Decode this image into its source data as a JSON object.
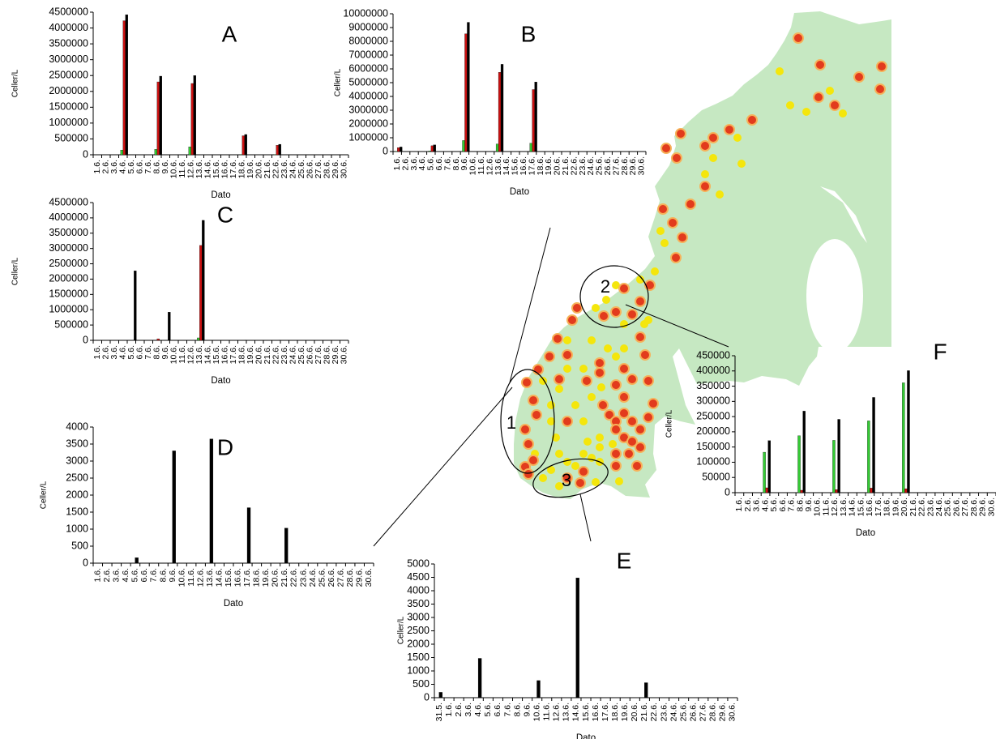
{
  "figure": {
    "map_labels": [
      "1",
      "2",
      "3"
    ]
  },
  "chart_data": [
    {
      "id": "A",
      "panel_label": "A",
      "type": "bar",
      "ylabel": "Celler/L",
      "xlabel": "Dato",
      "ylim": [
        0,
        4500000
      ],
      "yticks": [
        "0",
        "500000",
        "1000000",
        "1500000",
        "2000000",
        "2500000",
        "3000000",
        "3500000",
        "4000000",
        "4500000"
      ],
      "categories": [
        "1.6.",
        "2.6.",
        "3.6.",
        "4.6.",
        "5.6.",
        "6.6.",
        "7.6.",
        "8.6.",
        "9.6.",
        "10.6.",
        "11.6.",
        "12.6.",
        "13.6.",
        "14.6.",
        "15.6.",
        "16.6.",
        "17.6.",
        "18.6.",
        "19.6.",
        "20.6.",
        "21.6.",
        "22.6.",
        "23.6.",
        "24.6.",
        "25.6.",
        "26.6.",
        "27.6.",
        "28.6.",
        "29.6.",
        "30.6."
      ],
      "series": [
        {
          "color": "#33cc33",
          "values": [
            0,
            0,
            0,
            150000,
            0,
            0,
            0,
            170000,
            0,
            0,
            0,
            250000,
            0,
            0,
            0,
            0,
            0,
            10000,
            0,
            0,
            0,
            10000,
            0,
            0,
            0,
            0,
            0,
            0,
            0,
            0
          ]
        },
        {
          "color": "#cc1111",
          "values": [
            0,
            0,
            0,
            4230000,
            0,
            0,
            0,
            2300000,
            0,
            0,
            0,
            2250000,
            0,
            0,
            0,
            0,
            0,
            600000,
            0,
            0,
            0,
            300000,
            0,
            0,
            0,
            0,
            0,
            0,
            0,
            0
          ]
        },
        {
          "color": "#000000",
          "values": [
            0,
            0,
            0,
            4420000,
            0,
            0,
            0,
            2480000,
            0,
            0,
            0,
            2500000,
            0,
            0,
            0,
            0,
            0,
            640000,
            0,
            0,
            0,
            330000,
            0,
            0,
            0,
            0,
            0,
            0,
            0,
            0
          ]
        }
      ]
    },
    {
      "id": "B",
      "panel_label": "B",
      "type": "bar",
      "ylabel": "Celler/L",
      "xlabel": "Dato",
      "ylim": [
        0,
        10000000
      ],
      "yticks": [
        "0",
        "1000000",
        "2000000",
        "3000000",
        "4000000",
        "5000000",
        "6000000",
        "7000000",
        "8000000",
        "9000000",
        "10000000"
      ],
      "categories": [
        "1.6.",
        "2.6.",
        "3.6.",
        "4.6.",
        "5.6.",
        "6.6.",
        "7.6.",
        "8.6.",
        "9.6.",
        "10.6.",
        "11.6.",
        "12.6.",
        "13.6.",
        "14.6.",
        "15.6.",
        "16.6.",
        "17.6.",
        "18.6.",
        "19.6.",
        "20.6.",
        "21.6.",
        "22.6.",
        "23.6.",
        "24.6.",
        "25.6.",
        "26.6.",
        "27.6.",
        "28.6.",
        "29.6.",
        "30.6."
      ],
      "series": [
        {
          "color": "#33cc33",
          "values": [
            20000,
            0,
            0,
            0,
            40000,
            0,
            0,
            0,
            800000,
            0,
            0,
            0,
            550000,
            0,
            0,
            0,
            600000,
            0,
            0,
            0,
            0,
            0,
            0,
            0,
            0,
            0,
            0,
            0,
            0,
            0
          ]
        },
        {
          "color": "#cc1111",
          "values": [
            280000,
            0,
            0,
            0,
            420000,
            0,
            0,
            0,
            8550000,
            0,
            0,
            0,
            5750000,
            0,
            0,
            0,
            4500000,
            0,
            0,
            0,
            0,
            0,
            0,
            0,
            0,
            0,
            0,
            0,
            0,
            0
          ]
        },
        {
          "color": "#000000",
          "values": [
            330000,
            0,
            0,
            0,
            480000,
            0,
            0,
            0,
            9380000,
            0,
            0,
            0,
            6330000,
            0,
            0,
            0,
            5050000,
            0,
            0,
            0,
            0,
            0,
            0,
            0,
            0,
            0,
            0,
            0,
            0,
            0
          ]
        }
      ]
    },
    {
      "id": "C",
      "panel_label": "C",
      "type": "bar",
      "ylabel": "Celler/L",
      "xlabel": "Dato",
      "ylim": [
        0,
        4500000
      ],
      "yticks": [
        "0",
        "500000",
        "1000000",
        "1500000",
        "2000000",
        "2500000",
        "3000000",
        "3500000",
        "4000000",
        "4500000"
      ],
      "categories": [
        "1.6.",
        "2.6.",
        "3.6.",
        "4.6.",
        "5.6.",
        "6.6.",
        "7.6.",
        "8.6.",
        "9.6.",
        "10.6.",
        "11.6.",
        "12.6.",
        "13.6.",
        "14.6.",
        "15.6.",
        "16.6.",
        "17.6.",
        "18.6.",
        "19.6.",
        "20.6.",
        "21.6.",
        "22.6.",
        "23.6.",
        "24.6.",
        "25.6.",
        "26.6.",
        "27.6.",
        "28.6.",
        "29.6.",
        "30.6."
      ],
      "series": [
        {
          "color": "#33cc33",
          "values": [
            0,
            0,
            0,
            0,
            0,
            0,
            0,
            0,
            0,
            0,
            0,
            0,
            80000,
            0,
            0,
            0,
            0,
            0,
            0,
            0,
            0,
            0,
            0,
            0,
            0,
            0,
            0,
            0,
            0,
            0
          ]
        },
        {
          "color": "#cc1111",
          "values": [
            0,
            0,
            0,
            0,
            0,
            0,
            0,
            50000,
            0,
            0,
            0,
            0,
            3100000,
            0,
            0,
            0,
            0,
            0,
            0,
            0,
            0,
            0,
            0,
            0,
            0,
            0,
            0,
            0,
            0,
            0
          ]
        },
        {
          "color": "#000000",
          "values": [
            0,
            0,
            0,
            0,
            2270000,
            0,
            0,
            0,
            920000,
            0,
            0,
            0,
            3920000,
            0,
            0,
            0,
            0,
            10000,
            0,
            0,
            0,
            10000,
            0,
            0,
            0,
            0,
            0,
            0,
            0,
            0
          ]
        }
      ]
    },
    {
      "id": "D",
      "panel_label": "D",
      "type": "bar",
      "ylabel": "Celler/L",
      "xlabel": "Dato",
      "ylim": [
        0,
        4000
      ],
      "yticks": [
        "0",
        "500",
        "1000",
        "1500",
        "2000",
        "2500",
        "3000",
        "3500",
        "4000"
      ],
      "categories": [
        "1.6.",
        "2.6.",
        "3.6.",
        "4.6.",
        "5.6.",
        "6.6.",
        "7.6.",
        "8.6.",
        "9.6.",
        "10.6.",
        "11.6.",
        "12.6.",
        "13.6.",
        "14.6.",
        "15.6.",
        "16.6.",
        "17.6.",
        "18.6.",
        "19.6.",
        "20.6.",
        "21.6.",
        "22.6.",
        "23.6.",
        "24.6.",
        "25.6.",
        "26.6.",
        "27.6.",
        "28.6.",
        "29.6.",
        "30.6."
      ],
      "series": [
        {
          "color": "#000000",
          "values": [
            0,
            0,
            0,
            0,
            160,
            0,
            0,
            0,
            3300,
            0,
            0,
            0,
            3650,
            0,
            0,
            0,
            1630,
            0,
            0,
            0,
            1030,
            0,
            0,
            0,
            0,
            0,
            0,
            0,
            0,
            0
          ]
        }
      ]
    },
    {
      "id": "E",
      "panel_label": "E",
      "type": "bar",
      "ylabel": "Celler/L",
      "xlabel": "Dato",
      "ylim": [
        0,
        5000
      ],
      "yticks": [
        "0",
        "500",
        "1000",
        "1500",
        "2000",
        "2500",
        "3000",
        "3500",
        "4000",
        "4500",
        "5000"
      ],
      "categories": [
        "31.5.",
        "1.6.",
        "2.6.",
        "3.6.",
        "4.6.",
        "5.6.",
        "6.6.",
        "7.6.",
        "8.6.",
        "9.6.",
        "10.6.",
        "11.6.",
        "12.6.",
        "13.6.",
        "14.6.",
        "15.6.",
        "16.6.",
        "17.6.",
        "18.6.",
        "19.6.",
        "20.6.",
        "21.6.",
        "22.6.",
        "23.6.",
        "24.6.",
        "25.6.",
        "26.6.",
        "27.6.",
        "28.6.",
        "29.6.",
        "30.6."
      ],
      "series": [
        {
          "color": "#000000",
          "values": [
            200,
            0,
            0,
            0,
            1470,
            0,
            0,
            0,
            0,
            0,
            640,
            0,
            0,
            0,
            4480,
            0,
            0,
            0,
            0,
            0,
            0,
            560,
            0,
            0,
            0,
            0,
            0,
            0,
            0,
            0,
            0
          ]
        }
      ]
    },
    {
      "id": "F",
      "panel_label": "F",
      "type": "bar",
      "ylabel": "Celler/L",
      "xlabel": "Dato",
      "ylim": [
        0,
        450000
      ],
      "yticks": [
        "0",
        "50000",
        "100000",
        "150000",
        "200000",
        "250000",
        "300000",
        "350000",
        "400000",
        "450000"
      ],
      "categories": [
        "1.6.",
        "2.6.",
        "3.6.",
        "4.6.",
        "5.6.",
        "6.6.",
        "7.6.",
        "8.6.",
        "9.6.",
        "10.6.",
        "11.6.",
        "12.6.",
        "13.6.",
        "14.6.",
        "15.6.",
        "16.6.",
        "17.6.",
        "18.6.",
        "19.6.",
        "20.6.",
        "21.6.",
        "22.6.",
        "23.6.",
        "24.6.",
        "25.6.",
        "26.6.",
        "27.6.",
        "28.6.",
        "29.6.",
        "30.6."
      ],
      "series": [
        {
          "color": "#33cc33",
          "values": [
            0,
            0,
            0,
            133000,
            0,
            0,
            0,
            187000,
            0,
            0,
            0,
            172000,
            0,
            0,
            0,
            236000,
            0,
            0,
            0,
            361000,
            0,
            0,
            0,
            0,
            0,
            0,
            0,
            0,
            0,
            0
          ]
        },
        {
          "color": "#cc1111",
          "values": [
            0,
            0,
            0,
            16000,
            0,
            0,
            0,
            8000,
            0,
            0,
            0,
            10000,
            0,
            0,
            0,
            15000,
            0,
            0,
            0,
            13000,
            0,
            0,
            0,
            0,
            0,
            0,
            0,
            0,
            0,
            0
          ]
        },
        {
          "color": "#000000",
          "values": [
            0,
            0,
            0,
            171000,
            0,
            0,
            0,
            268000,
            0,
            0,
            0,
            241000,
            0,
            0,
            0,
            313000,
            0,
            0,
            0,
            401000,
            0,
            0,
            0,
            0,
            0,
            0,
            0,
            0,
            0,
            0
          ]
        }
      ]
    }
  ]
}
